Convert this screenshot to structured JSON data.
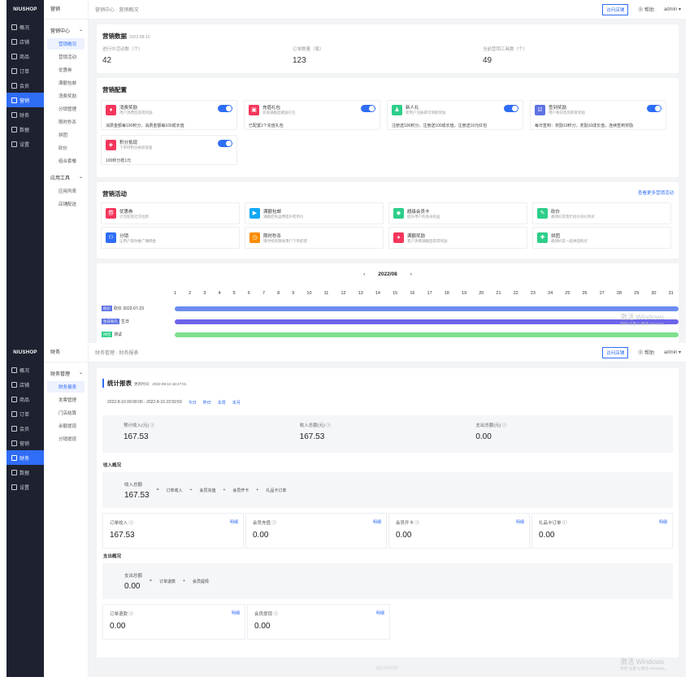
{
  "shot1": {
    "logo": "NIUSHOP",
    "nav": [
      {
        "label": "概况"
      },
      {
        "label": "店铺"
      },
      {
        "label": "商品"
      },
      {
        "label": "订单"
      },
      {
        "label": "会员"
      },
      {
        "label": "营销"
      },
      {
        "label": "财务"
      },
      {
        "label": "数据"
      },
      {
        "label": "设置"
      }
    ],
    "sub_header": "营销",
    "sub_group1": "营销中心",
    "sub_items1": [
      {
        "label": "营销概况"
      },
      {
        "label": "营销活动"
      },
      {
        "label": "优惠券"
      },
      {
        "label": "满额包邮"
      },
      {
        "label": "消费奖励"
      },
      {
        "label": "分销管理"
      },
      {
        "label": "限时秒杀"
      },
      {
        "label": "拼团"
      },
      {
        "label": "砍价"
      },
      {
        "label": "组合套餐"
      }
    ],
    "sub_group2": "应用工具",
    "sub_items2": [
      {
        "label": "应用列表"
      },
      {
        "label": "店铺配送"
      }
    ],
    "breadcrumb": "营销中心 · 营销概况",
    "visit": "访问店铺",
    "help": "⓪ 帮助",
    "admin": "admin ▾",
    "data_title": "营销数据",
    "data_date": "2022-08-10",
    "stats": [
      {
        "label": "进行中活动数（个）",
        "value": "42"
      },
      {
        "label": "订单数量（笔）",
        "value": "123"
      },
      {
        "label": "当前营销工具数（个）",
        "value": "49"
      }
    ],
    "config_title": "营销配置",
    "configs": [
      {
        "name": "消费奖励",
        "desc": "用户消费后获得奖励",
        "rule": "消费金额每100积分，消费金额每100成长值",
        "color": "#f5365c",
        "icon": "gift-icon"
      },
      {
        "name": "充值礼包",
        "desc": "充值满额后赠送礼包",
        "rule": "已配置1个充值礼包",
        "color": "#f5365c",
        "icon": "package-icon"
      },
      {
        "name": "新人礼",
        "desc": "新用户注册即可领取奖励",
        "rule": "注册送100积分，注册送100成长值，注册送10元红包",
        "color": "#2dce89",
        "icon": "person-icon"
      },
      {
        "name": "签到奖励",
        "desc": "用户每日签到获取奖励",
        "rule": "每日签到：奖励10积分，奖励10成长值，连续签到奖励",
        "color": "#5e72e4",
        "icon": "calendar-icon"
      },
      {
        "name": "积分抵现",
        "desc": "下单时积分抵扣现金",
        "rule": "100积分抵1元",
        "color": "#f5365c",
        "icon": "coin-icon"
      }
    ],
    "acts_title": "营销活动",
    "acts_more": "查看更多营销活动",
    "acts": [
      {
        "name": "优惠券",
        "desc": "引流裂变社交拉新",
        "color": "#f5365c",
        "icon": "coupon-icon"
      },
      {
        "name": "满额包邮",
        "desc": "满额后免运费提升客单价",
        "color": "#11a8f5",
        "icon": "truck-icon"
      },
      {
        "name": "超级会员卡",
        "desc": "提升用户的会员权益",
        "color": "#2dce89",
        "icon": "card-icon"
      },
      {
        "name": "砍价",
        "desc": "邀请好友帮忙砍价低价购买",
        "color": "#2dce89",
        "icon": "tag-icon"
      },
      {
        "name": "分销",
        "desc": "让用户帮你推广赚佣金",
        "color": "#2f6df6",
        "icon": "share-icon"
      },
      {
        "name": "限时秒杀",
        "desc": "限时抢购激发用户下单欲望",
        "color": "#fb8c00",
        "icon": "clock-icon"
      },
      {
        "name": "满额奖励",
        "desc": "客户消费满额后获得奖励",
        "color": "#f5365c",
        "icon": "gift-icon"
      },
      {
        "name": "拼团",
        "desc": "邀请好友一起拼团购买",
        "color": "#2dce89",
        "icon": "puzzle-icon"
      }
    ],
    "month": "2022/08",
    "days": [
      "1",
      "2",
      "3",
      "4",
      "5",
      "6",
      "7",
      "8",
      "9",
      "10",
      "11",
      "12",
      "13",
      "14",
      "15",
      "16",
      "17",
      "18",
      "19",
      "20",
      "21",
      "22",
      "23",
      "24",
      "25",
      "26",
      "27",
      "28",
      "29",
      "30",
      "31"
    ],
    "rows": [
      {
        "tag": "砍价",
        "label": "砍价 2022-07-23",
        "tagcolor": "#5e72e4",
        "barcolor": "#6b8cf0"
      },
      {
        "tag": "生日有礼",
        "label": "生日",
        "tagcolor": "#5e72e4",
        "barcolor": "#6b64ea"
      },
      {
        "tag": "拼团",
        "label": "测试",
        "tagcolor": "#2dce89",
        "barcolor": "#7ee08e"
      }
    ],
    "wm_title": "激活 Windows",
    "wm_sub": "转到\"设置\"以激活 Windows。"
  },
  "shot2": {
    "logo": "NIUSHOP",
    "nav": [
      {
        "label": "概况"
      },
      {
        "label": "店铺"
      },
      {
        "label": "商品"
      },
      {
        "label": "订单"
      },
      {
        "label": "会员"
      },
      {
        "label": "营销"
      },
      {
        "label": "财务"
      },
      {
        "label": "数据"
      },
      {
        "label": "设置"
      }
    ],
    "sub_header": "财务",
    "sub_group": "财务管理",
    "sub_items": [
      {
        "label": "财务报表"
      },
      {
        "label": "发票管理"
      },
      {
        "label": "门店结算"
      },
      {
        "label": "余额提现"
      },
      {
        "label": "分销提现"
      }
    ],
    "breadcrumb": "财务管理 · 财务报表",
    "visit": "访问店铺",
    "help": "⓪ 帮助",
    "admin": "admin ▾",
    "title": "统计报表",
    "updated": "更新时间：2022-08-10 18:47:01",
    "range": "2022-8-10 00:00:00 - 2022-8-10 23:59:59",
    "range_links": [
      "今日",
      "昨日",
      "本周",
      "本月"
    ],
    "summary": [
      {
        "label": "预计收入(元)",
        "value": "167.53"
      },
      {
        "label": "收入总额(元)",
        "value": "167.53"
      },
      {
        "label": "支出总额(元)",
        "value": "0.00"
      }
    ],
    "income_section": "收入概况",
    "income_total_label": "收入总额",
    "income_total": "167.53",
    "income_formula": [
      "订单收入",
      "会员充值",
      "会员开卡",
      "礼品卡订单"
    ],
    "income_items": [
      {
        "label": "订单收入",
        "value": "167.53",
        "detail": "明细"
      },
      {
        "label": "会员充值",
        "value": "0.00",
        "detail": "明细"
      },
      {
        "label": "会员开卡",
        "value": "0.00",
        "detail": "明细"
      },
      {
        "label": "礼品卡订单",
        "value": "0.00",
        "detail": "明细"
      }
    ],
    "expense_section": "支出概况",
    "expense_total_label": "支出总额",
    "expense_total": "0.00",
    "expense_formula": [
      "订单退款",
      "会员提现"
    ],
    "expense_items": [
      {
        "label": "订单退款",
        "value": "0.00",
        "detail": "明细"
      },
      {
        "label": "会员提现",
        "value": "0.00",
        "detail": "明细"
      }
    ],
    "footer": "NIUSHOP",
    "wm_title": "激活 Windows",
    "wm_sub": "转到\"设置\"以激活 Windows。"
  }
}
